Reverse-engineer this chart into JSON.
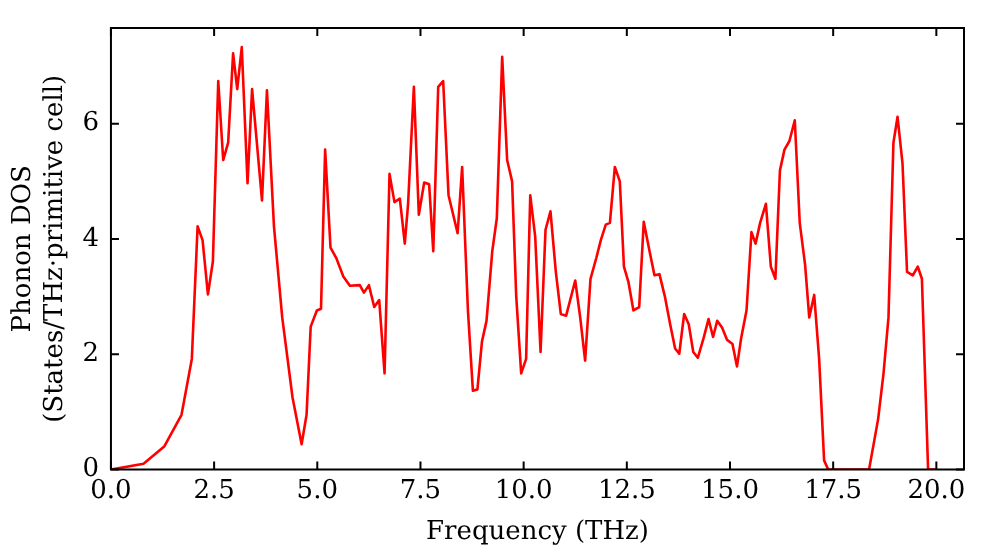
{
  "chart_data": {
    "type": "line",
    "xlabel": "Frequency (THz)",
    "ylabel": "Phonon DOS\n(States/THz·primitive cell)",
    "x": [
      0,
      0.79,
      1.29,
      1.71,
      1.96,
      2.1,
      2.22,
      2.35,
      2.47,
      2.6,
      2.72,
      2.84,
      2.96,
      3.06,
      3.17,
      3.31,
      3.42,
      3.66,
      3.78,
      3.95,
      4.15,
      4.4,
      4.62,
      4.74,
      4.84,
      4.99,
      5.09,
      5.19,
      5.32,
      5.46,
      5.63,
      5.79,
      6.03,
      6.13,
      6.25,
      6.38,
      6.5,
      6.63,
      6.75,
      6.87,
      7.0,
      7.12,
      7.2,
      7.34,
      7.46,
      7.59,
      7.71,
      7.81,
      7.93,
      8.05,
      8.18,
      8.4,
      8.51,
      8.65,
      8.77,
      8.88,
      8.99,
      9.1,
      9.24,
      9.35,
      9.48,
      9.6,
      9.72,
      9.82,
      9.94,
      10.06,
      10.16,
      10.28,
      10.41,
      10.53,
      10.65,
      10.78,
      10.9,
      11.03,
      11.25,
      11.37,
      11.49,
      11.62,
      11.76,
      11.87,
      11.99,
      12.09,
      12.21,
      12.33,
      12.43,
      12.54,
      12.66,
      12.8,
      12.91,
      13.05,
      13.17,
      13.29,
      13.42,
      13.55,
      13.67,
      13.77,
      13.89,
      14.0,
      14.11,
      14.22,
      14.36,
      14.48,
      14.59,
      14.69,
      14.81,
      14.93,
      15.06,
      15.17,
      15.27,
      15.4,
      15.52,
      15.62,
      15.73,
      15.87,
      15.99,
      16.1,
      16.21,
      16.32,
      16.44,
      16.57,
      16.69,
      16.82,
      16.92,
      17.04,
      17.16,
      17.28,
      17.38,
      18.37,
      18.59,
      18.72,
      18.84,
      18.96,
      19.06,
      19.18,
      19.29,
      19.43,
      19.55,
      19.65,
      19.8,
      19.99
    ],
    "series": [
      {
        "color": "#ff0000",
        "values": [
          0,
          0.1,
          0.4,
          0.95,
          1.92,
          4.22,
          3.98,
          3.04,
          3.61,
          6.74,
          5.37,
          5.67,
          7.22,
          6.6,
          7.33,
          4.97,
          6.6,
          4.67,
          6.58,
          4.22,
          2.64,
          1.25,
          0.44,
          0.95,
          2.48,
          2.76,
          2.79,
          5.55,
          3.85,
          3.67,
          3.35,
          3.19,
          3.2,
          3.07,
          3.2,
          2.82,
          2.94,
          1.67,
          5.13,
          4.64,
          4.7,
          3.92,
          4.61,
          6.64,
          4.42,
          4.98,
          4.95,
          3.79,
          6.64,
          6.74,
          4.76,
          4.1,
          5.25,
          2.76,
          1.37,
          1.39,
          2.22,
          2.58,
          3.79,
          4.36,
          7.16,
          5.37,
          5.0,
          3.01,
          1.67,
          1.92,
          4.76,
          4.04,
          2.04,
          4.16,
          4.48,
          3.43,
          2.7,
          2.67,
          3.28,
          2.64,
          1.89,
          3.31,
          3.67,
          3.98,
          4.25,
          4.28,
          5.25,
          5.0,
          3.52,
          3.25,
          2.76,
          2.82,
          4.3,
          3.79,
          3.37,
          3.39,
          3.01,
          2.52,
          2.1,
          2.01,
          2.7,
          2.52,
          2.04,
          1.94,
          2.28,
          2.61,
          2.3,
          2.58,
          2.46,
          2.25,
          2.18,
          1.79,
          2.28,
          2.76,
          4.12,
          3.92,
          4.28,
          4.61,
          3.52,
          3.31,
          5.19,
          5.55,
          5.7,
          6.06,
          4.28,
          3.55,
          2.64,
          3.03,
          1.92,
          0.16,
          0,
          0,
          0.88,
          1.67,
          2.64,
          5.67,
          6.12,
          5.31,
          3.43,
          3.37,
          3.52,
          3.31,
          0,
          0
        ]
      }
    ],
    "xlim": [
      0,
      20.67
    ],
    "ylim": [
      0,
      7.66
    ],
    "xticks": [
      {
        "value": 0,
        "label": "0.0"
      },
      {
        "value": 2.5,
        "label": "2.5"
      },
      {
        "value": 5,
        "label": "5.0"
      },
      {
        "value": 7.5,
        "label": "7.5"
      },
      {
        "value": 10,
        "label": "10.0"
      },
      {
        "value": 12.5,
        "label": "12.5"
      },
      {
        "value": 15,
        "label": "15.0"
      },
      {
        "value": 17.5,
        "label": "17.5"
      },
      {
        "value": 20,
        "label": "20.0"
      }
    ],
    "yticks": [
      0,
      2,
      4,
      6
    ],
    "grid": false,
    "legend": false,
    "marker": "none",
    "line_style": "solid"
  }
}
